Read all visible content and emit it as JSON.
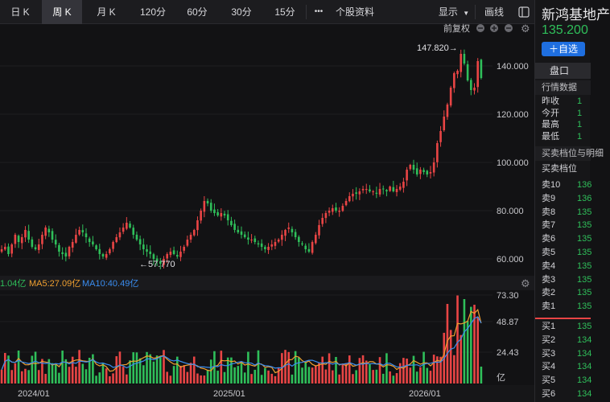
{
  "toolbar": {
    "tabs": [
      {
        "label": "日 K"
      },
      {
        "label": "周 K"
      },
      {
        "label": "月 K"
      },
      {
        "label": "120分"
      },
      {
        "label": "60分"
      },
      {
        "label": "30分"
      },
      {
        "label": "15分"
      }
    ],
    "more": "•••",
    "profile": "个股资料",
    "display": "显示",
    "draw": "画线",
    "active_tab": "周 K"
  },
  "chart_header": {
    "adjust": "前复权"
  },
  "volume_header": {
    "vol": "1.04亿",
    "ma5": "MA5:27.09亿",
    "ma10": "MA10:40.49亿"
  },
  "annotations": {
    "high": "147.820→",
    "low": "←57.770"
  },
  "right_panel": {
    "title": "新鸿基地产",
    "price": "135.200",
    "fav_button": "＋自选",
    "tab": "盘口",
    "market_data_title": "行情数据",
    "quotes": [
      {
        "label": "昨收",
        "value": "1"
      },
      {
        "label": "今开",
        "value": "1"
      },
      {
        "label": "最高",
        "value": "1"
      },
      {
        "label": "最低",
        "value": "1"
      }
    ],
    "orderbook_title": "买卖档位与明细",
    "orderbook_sub": "买卖档位",
    "asks": [
      {
        "label": "卖10",
        "value": "136"
      },
      {
        "label": "卖9",
        "value": "136"
      },
      {
        "label": "卖8",
        "value": "135"
      },
      {
        "label": "卖7",
        "value": "135"
      },
      {
        "label": "卖6",
        "value": "135"
      },
      {
        "label": "卖5",
        "value": "135"
      },
      {
        "label": "卖4",
        "value": "135"
      },
      {
        "label": "卖3",
        "value": "135"
      },
      {
        "label": "卖2",
        "value": "135"
      },
      {
        "label": "卖1",
        "value": "135"
      }
    ],
    "bids": [
      {
        "label": "买1",
        "value": "135"
      },
      {
        "label": "买2",
        "value": "134"
      },
      {
        "label": "买3",
        "value": "134"
      },
      {
        "label": "买4",
        "value": "134"
      },
      {
        "label": "买5",
        "value": "134"
      },
      {
        "label": "买6",
        "value": "134"
      }
    ]
  },
  "colors": {
    "up": "#e94545",
    "down": "#2fbf5a",
    "ma5": "#f0a030",
    "ma10": "#3a8df0",
    "grid": "#2a2a2e"
  },
  "chart_data": {
    "type": "candlestick",
    "price_axis": {
      "ticks": [
        "140.000",
        "120.000",
        "100.000",
        "80.000",
        "60.000"
      ],
      "range": [
        54,
        150
      ]
    },
    "volume_axis": {
      "ticks": [
        "73.30",
        "48.87",
        "24.43"
      ],
      "unit": "亿",
      "range": [
        0,
        75
      ]
    },
    "x_ticks": [
      "2024/01",
      "2025/01",
      "2026/01"
    ],
    "high_value": 147.82,
    "low_value": 57.77,
    "close_series": [
      64,
      65,
      62,
      66,
      70,
      67,
      69,
      72,
      68,
      65,
      64,
      66,
      70,
      73,
      71,
      68,
      66,
      63,
      62,
      61,
      65,
      67,
      70,
      72,
      71,
      69,
      67,
      66,
      64,
      62,
      61,
      62,
      64,
      67,
      69,
      71,
      73,
      75,
      73,
      70,
      68,
      66,
      64,
      63,
      62,
      60,
      59,
      58,
      60,
      62,
      63,
      62,
      61,
      63,
      65,
      68,
      70,
      72,
      76,
      80,
      84,
      83,
      80,
      79,
      78,
      79,
      78,
      76,
      74,
      72,
      71,
      70,
      69,
      68,
      68,
      67,
      66,
      65,
      64,
      65,
      66,
      67,
      68,
      70,
      72,
      73,
      71,
      69,
      67,
      66,
      64,
      63,
      67,
      70,
      74,
      77,
      79,
      80,
      81,
      80,
      80,
      82,
      84,
      86,
      87,
      87,
      88,
      89,
      89,
      88,
      88,
      87,
      89,
      89,
      88,
      90,
      88,
      89,
      90,
      92,
      97,
      99,
      97,
      95,
      97,
      96,
      95,
      96,
      100,
      108,
      113,
      119,
      124,
      131,
      137,
      138,
      145,
      141,
      134,
      130,
      131,
      142,
      135
    ]
  }
}
